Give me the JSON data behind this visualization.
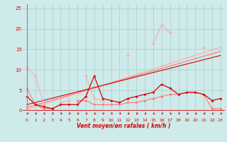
{
  "x": [
    0,
    1,
    2,
    3,
    4,
    5,
    6,
    7,
    8,
    9,
    10,
    11,
    12,
    13,
    14,
    15,
    16,
    17,
    18,
    19,
    20,
    21,
    22,
    23
  ],
  "line1": [
    10.5,
    8.5,
    1.5,
    null,
    2.0,
    2.5,
    null,
    8.5,
    3.0,
    2.5,
    null,
    null,
    13.5,
    null,
    null,
    16.5,
    21.0,
    19.0,
    null,
    null,
    null,
    15.5,
    null,
    null
  ],
  "line2": [
    3.5,
    1.5,
    1.0,
    0.5,
    1.5,
    1.5,
    1.5,
    3.5,
    8.5,
    3.0,
    2.5,
    2.0,
    3.0,
    3.5,
    4.0,
    4.5,
    6.5,
    5.5,
    4.0,
    4.5,
    4.5,
    4.0,
    2.5,
    3.0
  ],
  "line3": [
    5.5,
    1.5,
    0.5,
    0.5,
    null,
    null,
    2.5,
    2.5,
    1.5,
    1.5,
    1.5,
    1.5,
    2.0,
    2.0,
    2.5,
    3.0,
    3.5,
    4.0,
    4.0,
    4.5,
    4.5,
    4.0,
    0.5,
    0.5
  ],
  "slope1": [
    0.3,
    15.5
  ],
  "slope2": [
    0.8,
    14.5
  ],
  "slope3": [
    1.5,
    13.5
  ],
  "background_color": "#ceeaea",
  "grid_color": "#aacccc",
  "color_dark": "#dd0000",
  "color_mid": "#ff7777",
  "color_light": "#ffaaaa",
  "xlabel": "Vent moyen/en rafales ( km/h )",
  "ylim": [
    0,
    26
  ],
  "xlim": [
    -0.5,
    23.5
  ],
  "yticks": [
    0,
    5,
    10,
    15,
    20,
    25
  ],
  "xticks": [
    0,
    1,
    2,
    3,
    4,
    5,
    6,
    7,
    8,
    9,
    10,
    11,
    12,
    13,
    14,
    15,
    16,
    17,
    18,
    19,
    20,
    21,
    22,
    23
  ]
}
